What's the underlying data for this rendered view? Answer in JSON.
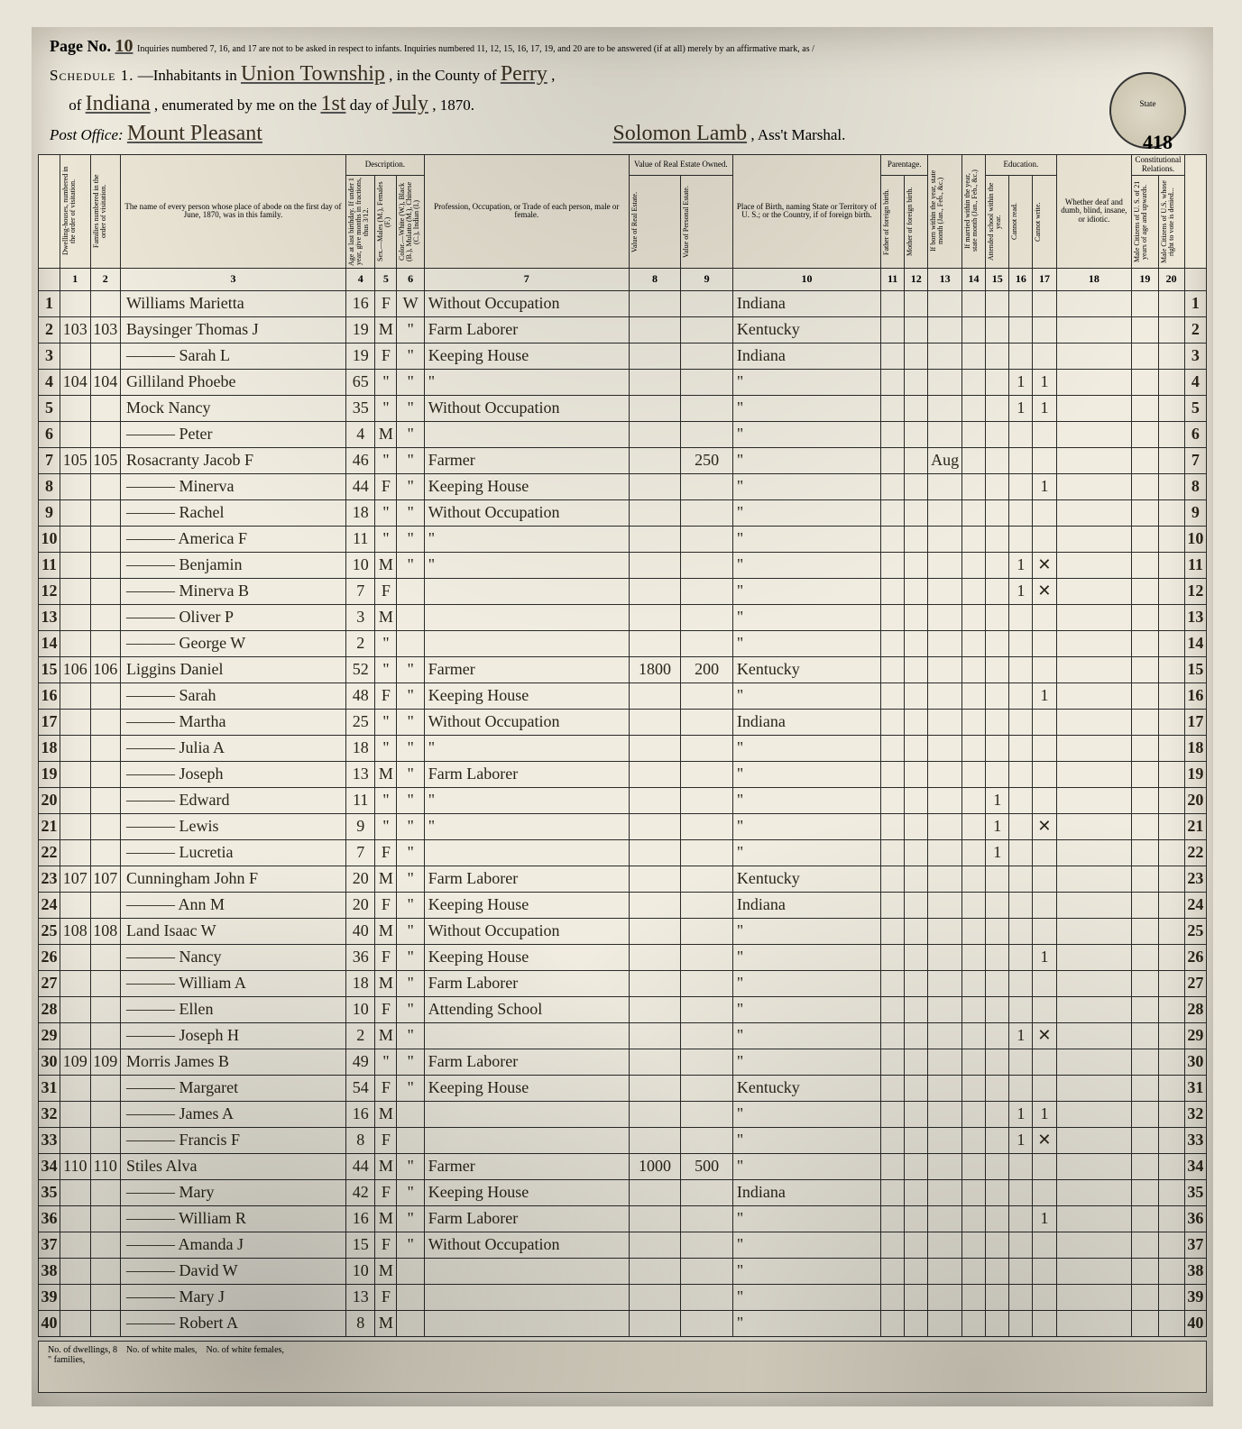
{
  "header": {
    "page_no_label": "Page No.",
    "page_no_value": "10",
    "top_note": "Inquiries numbered 7, 16, and 17 are not to be asked in respect to infants. Inquiries numbered 11, 12, 15, 16, 17, 19, and 20 are to be answered (if at all) merely by an affirmative mark, as /",
    "schedule_label": "Schedule 1.",
    "inhabitants_label": "—Inhabitants in",
    "township": "Union Township",
    "county_label": ", in the County of",
    "county": "Perry",
    "of_label": "of",
    "state": "Indiana",
    "enum_label": ", enumerated by me on the",
    "day": "1st",
    "day_label": "day of",
    "month": "July",
    "year": ", 1870.",
    "post_office_label": "Post Office:",
    "post_office": "Mount Pleasant",
    "marshal": "Solomon Lamb",
    "marshal_label": ", Ass't Marshal.",
    "seal_text": "State",
    "stamp": "418"
  },
  "column_groups": {
    "description": "Description.",
    "value": "Value of Real Estate Owned.",
    "parentage": "Parentage.",
    "education": "Education.",
    "constitutional": "Constitutional Relations."
  },
  "column_headers": {
    "dwelling": "Dwelling-houses, numbered in the order of visitation.",
    "family": "Families numbered in the order of visitation.",
    "name": "The name of every person whose place of abode on the first day of June, 1870, was in this family.",
    "age": "Age at last birthday. If under 1 year, give months in fractions, thus 3/12.",
    "sex": "Sex.—Males (M.), Females (F.)",
    "color": "Color.—White (W.), Black (B.), Mulatto (M.), Chinese (C.), Indian (I.)",
    "occupation": "Profession, Occupation, or Trade of each person, male or female.",
    "real": "Value of Real Estate.",
    "personal": "Value of Personal Estate.",
    "birthplace": "Place of Birth, naming State or Territory of U. S.; or the Country, if of foreign birth.",
    "father_foreign": "Father of foreign birth.",
    "mother_foreign": "Mother of foreign birth.",
    "born_year": "If born within the year, state month (Jan., Feb., &c.)",
    "married_year": "If married within the year, state month (Jan., Feb., &c.)",
    "school": "Attended school within the year.",
    "read": "Cannot read.",
    "write": "Cannot write.",
    "blind": "Whether deaf and dumb, blind, insane, or idiotic.",
    "citizen": "Male Citizens of U. S. of 21 years of age and upwards.",
    "denied": "Male Citizens of U.S. whose right to vote is denied..."
  },
  "colnums": [
    "1",
    "2",
    "3",
    "4",
    "5",
    "6",
    "7",
    "8",
    "9",
    "10",
    "11",
    "12",
    "13",
    "14",
    "15",
    "16",
    "17",
    "18",
    "19",
    "20"
  ],
  "rows": [
    {
      "n": 1,
      "d": "",
      "f": "",
      "name": "Williams Marietta",
      "age": "16",
      "sex": "F",
      "col": "W",
      "occ": "Without Occupation",
      "real": "",
      "pers": "",
      "birth": "Indiana",
      "marks": {}
    },
    {
      "n": 2,
      "d": "103",
      "f": "103",
      "name": "Baysinger Thomas J",
      "age": "19",
      "sex": "M",
      "col": "\"",
      "occ": "Farm Laborer",
      "real": "",
      "pers": "",
      "birth": "Kentucky",
      "marks": {}
    },
    {
      "n": 3,
      "d": "",
      "f": "",
      "name": "——— Sarah L",
      "age": "19",
      "sex": "F",
      "col": "\"",
      "occ": "Keeping House",
      "real": "",
      "pers": "",
      "birth": "Indiana",
      "marks": {}
    },
    {
      "n": 4,
      "d": "104",
      "f": "104",
      "name": "Gilliland Phoebe",
      "age": "65",
      "sex": "\"",
      "col": "\"",
      "occ": "\"",
      "real": "",
      "pers": "",
      "birth": "\"",
      "marks": {
        "16": "1",
        "17": "1"
      }
    },
    {
      "n": 5,
      "d": "",
      "f": "",
      "name": "Mock Nancy",
      "age": "35",
      "sex": "\"",
      "col": "\"",
      "occ": "Without Occupation",
      "real": "",
      "pers": "",
      "birth": "\"",
      "marks": {
        "16": "1",
        "17": "1"
      }
    },
    {
      "n": 6,
      "d": "",
      "f": "",
      "name": "——— Peter",
      "age": "4",
      "sex": "M",
      "col": "\"",
      "occ": "",
      "real": "",
      "pers": "",
      "birth": "\"",
      "marks": {}
    },
    {
      "n": 7,
      "d": "105",
      "f": "105",
      "name": "Rosacranty Jacob F",
      "age": "46",
      "sex": "\"",
      "col": "\"",
      "occ": "Farmer",
      "real": "",
      "pers": "250",
      "birth": "\"",
      "marks": {
        "13": "Aug"
      }
    },
    {
      "n": 8,
      "d": "",
      "f": "",
      "name": "——— Minerva",
      "age": "44",
      "sex": "F",
      "col": "\"",
      "occ": "Keeping House",
      "real": "",
      "pers": "",
      "birth": "\"",
      "marks": {
        "17": "1"
      }
    },
    {
      "n": 9,
      "d": "",
      "f": "",
      "name": "——— Rachel",
      "age": "18",
      "sex": "\"",
      "col": "\"",
      "occ": "Without Occupation",
      "real": "",
      "pers": "",
      "birth": "\"",
      "marks": {}
    },
    {
      "n": 10,
      "d": "",
      "f": "",
      "name": "——— America F",
      "age": "11",
      "sex": "\"",
      "col": "\"",
      "occ": "\"",
      "real": "",
      "pers": "",
      "birth": "\"",
      "marks": {}
    },
    {
      "n": 11,
      "d": "",
      "f": "",
      "name": "——— Benjamin",
      "age": "10",
      "sex": "M",
      "col": "\"",
      "occ": "\"",
      "real": "",
      "pers": "",
      "birth": "\"",
      "marks": {
        "16": "1",
        "17": "✕"
      }
    },
    {
      "n": 12,
      "d": "",
      "f": "",
      "name": "——— Minerva B",
      "age": "7",
      "sex": "F",
      "col": "",
      "occ": "",
      "real": "",
      "pers": "",
      "birth": "\"",
      "marks": {
        "16": "1",
        "17": "✕"
      }
    },
    {
      "n": 13,
      "d": "",
      "f": "",
      "name": "——— Oliver P",
      "age": "3",
      "sex": "M",
      "col": "",
      "occ": "",
      "real": "",
      "pers": "",
      "birth": "\"",
      "marks": {}
    },
    {
      "n": 14,
      "d": "",
      "f": "",
      "name": "——— George W",
      "age": "2",
      "sex": "\"",
      "col": "",
      "occ": "",
      "real": "",
      "pers": "",
      "birth": "\"",
      "marks": {}
    },
    {
      "n": 15,
      "d": "106",
      "f": "106",
      "name": "Liggins Daniel",
      "age": "52",
      "sex": "\"",
      "col": "\"",
      "occ": "Farmer",
      "real": "1800",
      "pers": "200",
      "birth": "Kentucky",
      "marks": {}
    },
    {
      "n": 16,
      "d": "",
      "f": "",
      "name": "——— Sarah",
      "age": "48",
      "sex": "F",
      "col": "\"",
      "occ": "Keeping House",
      "real": "",
      "pers": "",
      "birth": "\"",
      "marks": {
        "17": "1"
      }
    },
    {
      "n": 17,
      "d": "",
      "f": "",
      "name": "——— Martha",
      "age": "25",
      "sex": "\"",
      "col": "\"",
      "occ": "Without Occupation",
      "real": "",
      "pers": "",
      "birth": "Indiana",
      "marks": {}
    },
    {
      "n": 18,
      "d": "",
      "f": "",
      "name": "——— Julia A",
      "age": "18",
      "sex": "\"",
      "col": "\"",
      "occ": "\"",
      "real": "",
      "pers": "",
      "birth": "\"",
      "marks": {}
    },
    {
      "n": 19,
      "d": "",
      "f": "",
      "name": "——— Joseph",
      "age": "13",
      "sex": "M",
      "col": "\"",
      "occ": "Farm Laborer",
      "real": "",
      "pers": "",
      "birth": "\"",
      "marks": {}
    },
    {
      "n": 20,
      "d": "",
      "f": "",
      "name": "——— Edward",
      "age": "11",
      "sex": "\"",
      "col": "\"",
      "occ": "\"",
      "real": "",
      "pers": "",
      "birth": "\"",
      "marks": {
        "15": "1"
      }
    },
    {
      "n": 21,
      "d": "",
      "f": "",
      "name": "——— Lewis",
      "age": "9",
      "sex": "\"",
      "col": "\"",
      "occ": "\"",
      "real": "",
      "pers": "",
      "birth": "\"",
      "marks": {
        "15": "1",
        "17": "✕"
      }
    },
    {
      "n": 22,
      "d": "",
      "f": "",
      "name": "——— Lucretia",
      "age": "7",
      "sex": "F",
      "col": "\"",
      "occ": "",
      "real": "",
      "pers": "",
      "birth": "\"",
      "marks": {
        "15": "1"
      }
    },
    {
      "n": 23,
      "d": "107",
      "f": "107",
      "name": "Cunningham John F",
      "age": "20",
      "sex": "M",
      "col": "\"",
      "occ": "Farm Laborer",
      "real": "",
      "pers": "",
      "birth": "Kentucky",
      "marks": {}
    },
    {
      "n": 24,
      "d": "",
      "f": "",
      "name": "——— Ann M",
      "age": "20",
      "sex": "F",
      "col": "\"",
      "occ": "Keeping House",
      "real": "",
      "pers": "",
      "birth": "Indiana",
      "marks": {}
    },
    {
      "n": 25,
      "d": "108",
      "f": "108",
      "name": "Land Isaac W",
      "age": "40",
      "sex": "M",
      "col": "\"",
      "occ": "Without Occupation",
      "real": "",
      "pers": "",
      "birth": "\"",
      "marks": {}
    },
    {
      "n": 26,
      "d": "",
      "f": "",
      "name": "——— Nancy",
      "age": "36",
      "sex": "F",
      "col": "\"",
      "occ": "Keeping House",
      "real": "",
      "pers": "",
      "birth": "\"",
      "marks": {
        "17": "1"
      }
    },
    {
      "n": 27,
      "d": "",
      "f": "",
      "name": "——— William A",
      "age": "18",
      "sex": "M",
      "col": "\"",
      "occ": "Farm Laborer",
      "real": "",
      "pers": "",
      "birth": "\"",
      "marks": {}
    },
    {
      "n": 28,
      "d": "",
      "f": "",
      "name": "——— Ellen",
      "age": "10",
      "sex": "F",
      "col": "\"",
      "occ": "Attending School",
      "real": "",
      "pers": "",
      "birth": "\"",
      "marks": {}
    },
    {
      "n": 29,
      "d": "",
      "f": "",
      "name": "——— Joseph H",
      "age": "2",
      "sex": "M",
      "col": "\"",
      "occ": "",
      "real": "",
      "pers": "",
      "birth": "\"",
      "marks": {
        "16": "1",
        "17": "✕"
      }
    },
    {
      "n": 30,
      "d": "109",
      "f": "109",
      "name": "Morris James B",
      "age": "49",
      "sex": "\"",
      "col": "\"",
      "occ": "Farm Laborer",
      "real": "",
      "pers": "",
      "birth": "\"",
      "marks": {}
    },
    {
      "n": 31,
      "d": "",
      "f": "",
      "name": "——— Margaret",
      "age": "54",
      "sex": "F",
      "col": "\"",
      "occ": "Keeping House",
      "real": "",
      "pers": "",
      "birth": "Kentucky",
      "marks": {}
    },
    {
      "n": 32,
      "d": "",
      "f": "",
      "name": "——— James A",
      "age": "16",
      "sex": "M",
      "col": "",
      "occ": "",
      "real": "",
      "pers": "",
      "birth": "\"",
      "marks": {
        "16": "1",
        "17": "1"
      }
    },
    {
      "n": 33,
      "d": "",
      "f": "",
      "name": "——— Francis F",
      "age": "8",
      "sex": "F",
      "col": "",
      "occ": "",
      "real": "",
      "pers": "",
      "birth": "\"",
      "marks": {
        "16": "1",
        "17": "✕"
      }
    },
    {
      "n": 34,
      "d": "110",
      "f": "110",
      "name": "Stiles Alva",
      "age": "44",
      "sex": "M",
      "col": "\"",
      "occ": "Farmer",
      "real": "1000",
      "pers": "500",
      "birth": "\"",
      "marks": {}
    },
    {
      "n": 35,
      "d": "",
      "f": "",
      "name": "——— Mary",
      "age": "42",
      "sex": "F",
      "col": "\"",
      "occ": "Keeping House",
      "real": "",
      "pers": "",
      "birth": "Indiana",
      "marks": {}
    },
    {
      "n": 36,
      "d": "",
      "f": "",
      "name": "——— William R",
      "age": "16",
      "sex": "M",
      "col": "\"",
      "occ": "Farm Laborer",
      "real": "",
      "pers": "",
      "birth": "\"",
      "marks": {
        "17": "1"
      }
    },
    {
      "n": 37,
      "d": "",
      "f": "",
      "name": "——— Amanda J",
      "age": "15",
      "sex": "F",
      "col": "\"",
      "occ": "Without Occupation",
      "real": "",
      "pers": "",
      "birth": "\"",
      "marks": {}
    },
    {
      "n": 38,
      "d": "",
      "f": "",
      "name": "——— David W",
      "age": "10",
      "sex": "M",
      "col": "",
      "occ": "",
      "real": "",
      "pers": "",
      "birth": "\"",
      "marks": {}
    },
    {
      "n": 39,
      "d": "",
      "f": "",
      "name": "——— Mary J",
      "age": "13",
      "sex": "F",
      "col": "",
      "occ": "",
      "real": "",
      "pers": "",
      "birth": "\"",
      "marks": {}
    },
    {
      "n": 40,
      "d": "",
      "f": "",
      "name": "——— Robert A",
      "age": "8",
      "sex": "M",
      "col": "",
      "occ": "",
      "real": "",
      "pers": "",
      "birth": "\"",
      "marks": {}
    }
  ],
  "footer": {
    "dwellings_label": "No. of dwellings,",
    "families_label": "\" families,",
    "white_label": "No. of white females,",
    "white_males_label": "No. of white males,"
  }
}
